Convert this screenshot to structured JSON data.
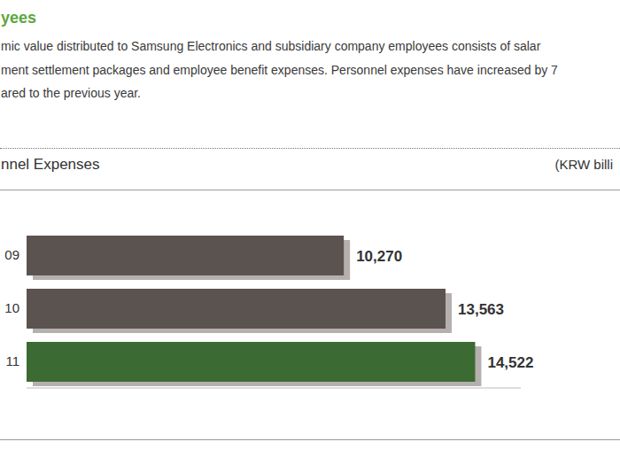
{
  "header": {
    "title": "yees",
    "lines": [
      "mic value distributed to Samsung Electronics and subsidiary company employees consists of salar",
      "ment settlement packages and employee benefit expenses. Personnel expenses have increased by 7",
      "ared to the previous year."
    ]
  },
  "chart_data": {
    "type": "bar",
    "orientation": "horizontal",
    "title": "nnel Expenses",
    "subtitle": "(KRW billi",
    "categories": [
      "09",
      "10",
      "11"
    ],
    "values": [
      10270,
      13563,
      14522
    ],
    "value_labels": [
      "10,270",
      "13,563",
      "14,522"
    ],
    "colors": [
      "#5b5350",
      "#5b5350",
      "#3b6b33"
    ],
    "xlim": [
      0,
      16000
    ],
    "xticks": [],
    "tick_labels": "y",
    "data_labels": true,
    "grid": false
  }
}
